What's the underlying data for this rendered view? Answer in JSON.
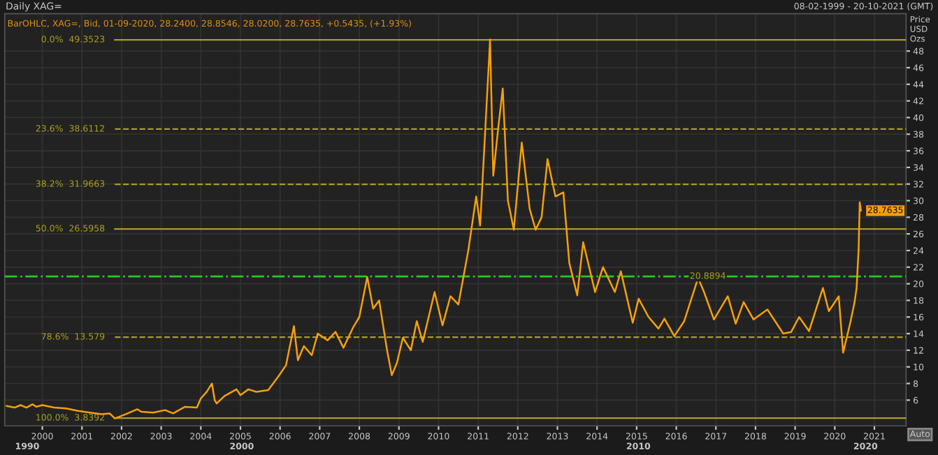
{
  "chart_data": {
    "type": "line",
    "title": "Daily XAG=",
    "subtitle": "BarOHLC, XAG=, Bid, 01-09-2020, 28.2400, 28.8546, 28.0200, 28.7635, +0.5435, (+1.93%)",
    "ylabel": "Price\nUSD\nOzs",
    "annotations": [
      "08-02-1999 - 20-10-2021 (GMT)",
      "Auto",
      "28.7635",
      "1990",
      "2000",
      "2010",
      "2020"
    ],
    "series": [
      {
        "color": "#f5a00a",
        "x": [
          1999.1,
          1999.3,
          1999.45,
          1999.6,
          1999.75,
          1999.85,
          2000.0,
          2000.3,
          2000.6,
          2000.9,
          2001.2,
          2001.5,
          2001.7,
          2001.83,
          2002.1,
          2002.4,
          2002.5,
          2002.8,
          2003.1,
          2003.3,
          2003.6,
          2003.9,
          2004.0,
          2004.15,
          2004.28,
          2004.35,
          2004.4,
          2004.6,
          2004.9,
          2005.0,
          2005.2,
          2005.4,
          2005.7,
          2005.95,
          2006.15,
          2006.35,
          2006.45,
          2006.6,
          2006.8,
          2006.95,
          2007.2,
          2007.4,
          2007.6,
          2007.85,
          2008.0,
          2008.2,
          2008.35,
          2008.5,
          2008.7,
          2008.82,
          2008.95,
          2009.1,
          2009.3,
          2009.45,
          2009.6,
          2009.9,
          2010.1,
          2010.3,
          2010.5,
          2010.75,
          2010.95,
          2011.05,
          2011.3,
          2011.38,
          2011.5,
          2011.62,
          2011.75,
          2011.9,
          2012.1,
          2012.3,
          2012.45,
          2012.6,
          2012.75,
          2012.95,
          2013.15,
          2013.3,
          2013.5,
          2013.65,
          2013.95,
          2014.15,
          2014.45,
          2014.6,
          2014.9,
          2015.05,
          2015.3,
          2015.55,
          2015.7,
          2015.95,
          2016.2,
          2016.55,
          2016.7,
          2016.95,
          2017.3,
          2017.5,
          2017.7,
          2017.95,
          2018.3,
          2018.7,
          2018.9,
          2019.1,
          2019.35,
          2019.7,
          2019.85,
          2020.1,
          2020.21,
          2020.4,
          2020.5,
          2020.55,
          2020.6,
          2020.63,
          2020.66
        ],
        "values": [
          5.3,
          5.1,
          5.4,
          5.1,
          5.5,
          5.2,
          5.4,
          5.1,
          5.0,
          4.7,
          4.5,
          4.3,
          4.4,
          3.8,
          4.3,
          4.9,
          4.6,
          4.5,
          4.8,
          4.4,
          5.2,
          5.1,
          6.2,
          7.0,
          8.0,
          6.0,
          5.6,
          6.5,
          7.3,
          6.6,
          7.3,
          7.0,
          7.2,
          8.8,
          10.2,
          14.9,
          10.8,
          12.5,
          11.4,
          14.0,
          13.2,
          14.2,
          12.3,
          14.8,
          16.0,
          20.8,
          17.0,
          18.0,
          12.0,
          9.0,
          10.5,
          13.5,
          12.0,
          15.5,
          13.0,
          19.0,
          15.0,
          18.5,
          17.5,
          24.0,
          30.5,
          27.0,
          49.4,
          33.0,
          38.5,
          43.5,
          30.0,
          26.5,
          37.0,
          29.0,
          26.5,
          28.0,
          35.0,
          30.5,
          31.0,
          22.5,
          18.6,
          25.0,
          19.0,
          22.0,
          19.0,
          21.5,
          15.3,
          18.2,
          16.0,
          14.6,
          15.8,
          13.7,
          15.5,
          20.7,
          19.0,
          15.7,
          18.5,
          15.2,
          17.8,
          15.7,
          16.9,
          14.0,
          14.2,
          16.0,
          14.3,
          19.5,
          16.7,
          18.5,
          11.7,
          15.5,
          17.8,
          19.5,
          24.0,
          29.8,
          28.8
        ]
      }
    ],
    "ref_lines": [
      {
        "axis": "y",
        "value": 49.3523,
        "label": "0.0%  49.3523",
        "color": "#a9a01e",
        "line_style": "solid"
      },
      {
        "axis": "y",
        "value": 38.6112,
        "label": "23.6%  38.6112",
        "color": "#a9a01e",
        "line_style": "dashed"
      },
      {
        "axis": "y",
        "value": 31.9663,
        "label": "38.2%  31.9663",
        "color": "#a9a01e",
        "line_style": "dashed"
      },
      {
        "axis": "y",
        "value": 26.5958,
        "label": "50.0%  26.5958",
        "color": "#a9a01e",
        "line_style": "solid"
      },
      {
        "axis": "y",
        "value": 13.579,
        "label": "78.6%  13.579",
        "color": "#a9a01e",
        "line_style": "dashed"
      },
      {
        "axis": "y",
        "value": 3.8392,
        "label": "100.0%  3.8392",
        "color": "#a9a01e",
        "line_style": "solid"
      },
      {
        "axis": "y",
        "value": 20.8894,
        "label": "20.8894",
        "color": "#22cc22",
        "line_style": "dashdot"
      }
    ],
    "xlim": [
      1999.05,
      2021.8
    ],
    "xticks": [
      2000,
      2001,
      2002,
      2003,
      2004,
      2005,
      2006,
      2007,
      2008,
      2009,
      2010,
      2011,
      2012,
      2013,
      2014,
      2015,
      2016,
      2017,
      2018,
      2019,
      2020,
      2021
    ],
    "ylim": [
      2.9,
      52.5
    ],
    "yticks": [
      6,
      8,
      10,
      12,
      14,
      16,
      18,
      20,
      22,
      24,
      26,
      28,
      30,
      32,
      34,
      36,
      38,
      40,
      42,
      44,
      46,
      48
    ],
    "grid": true,
    "marker": "none",
    "line_style": "solid"
  }
}
